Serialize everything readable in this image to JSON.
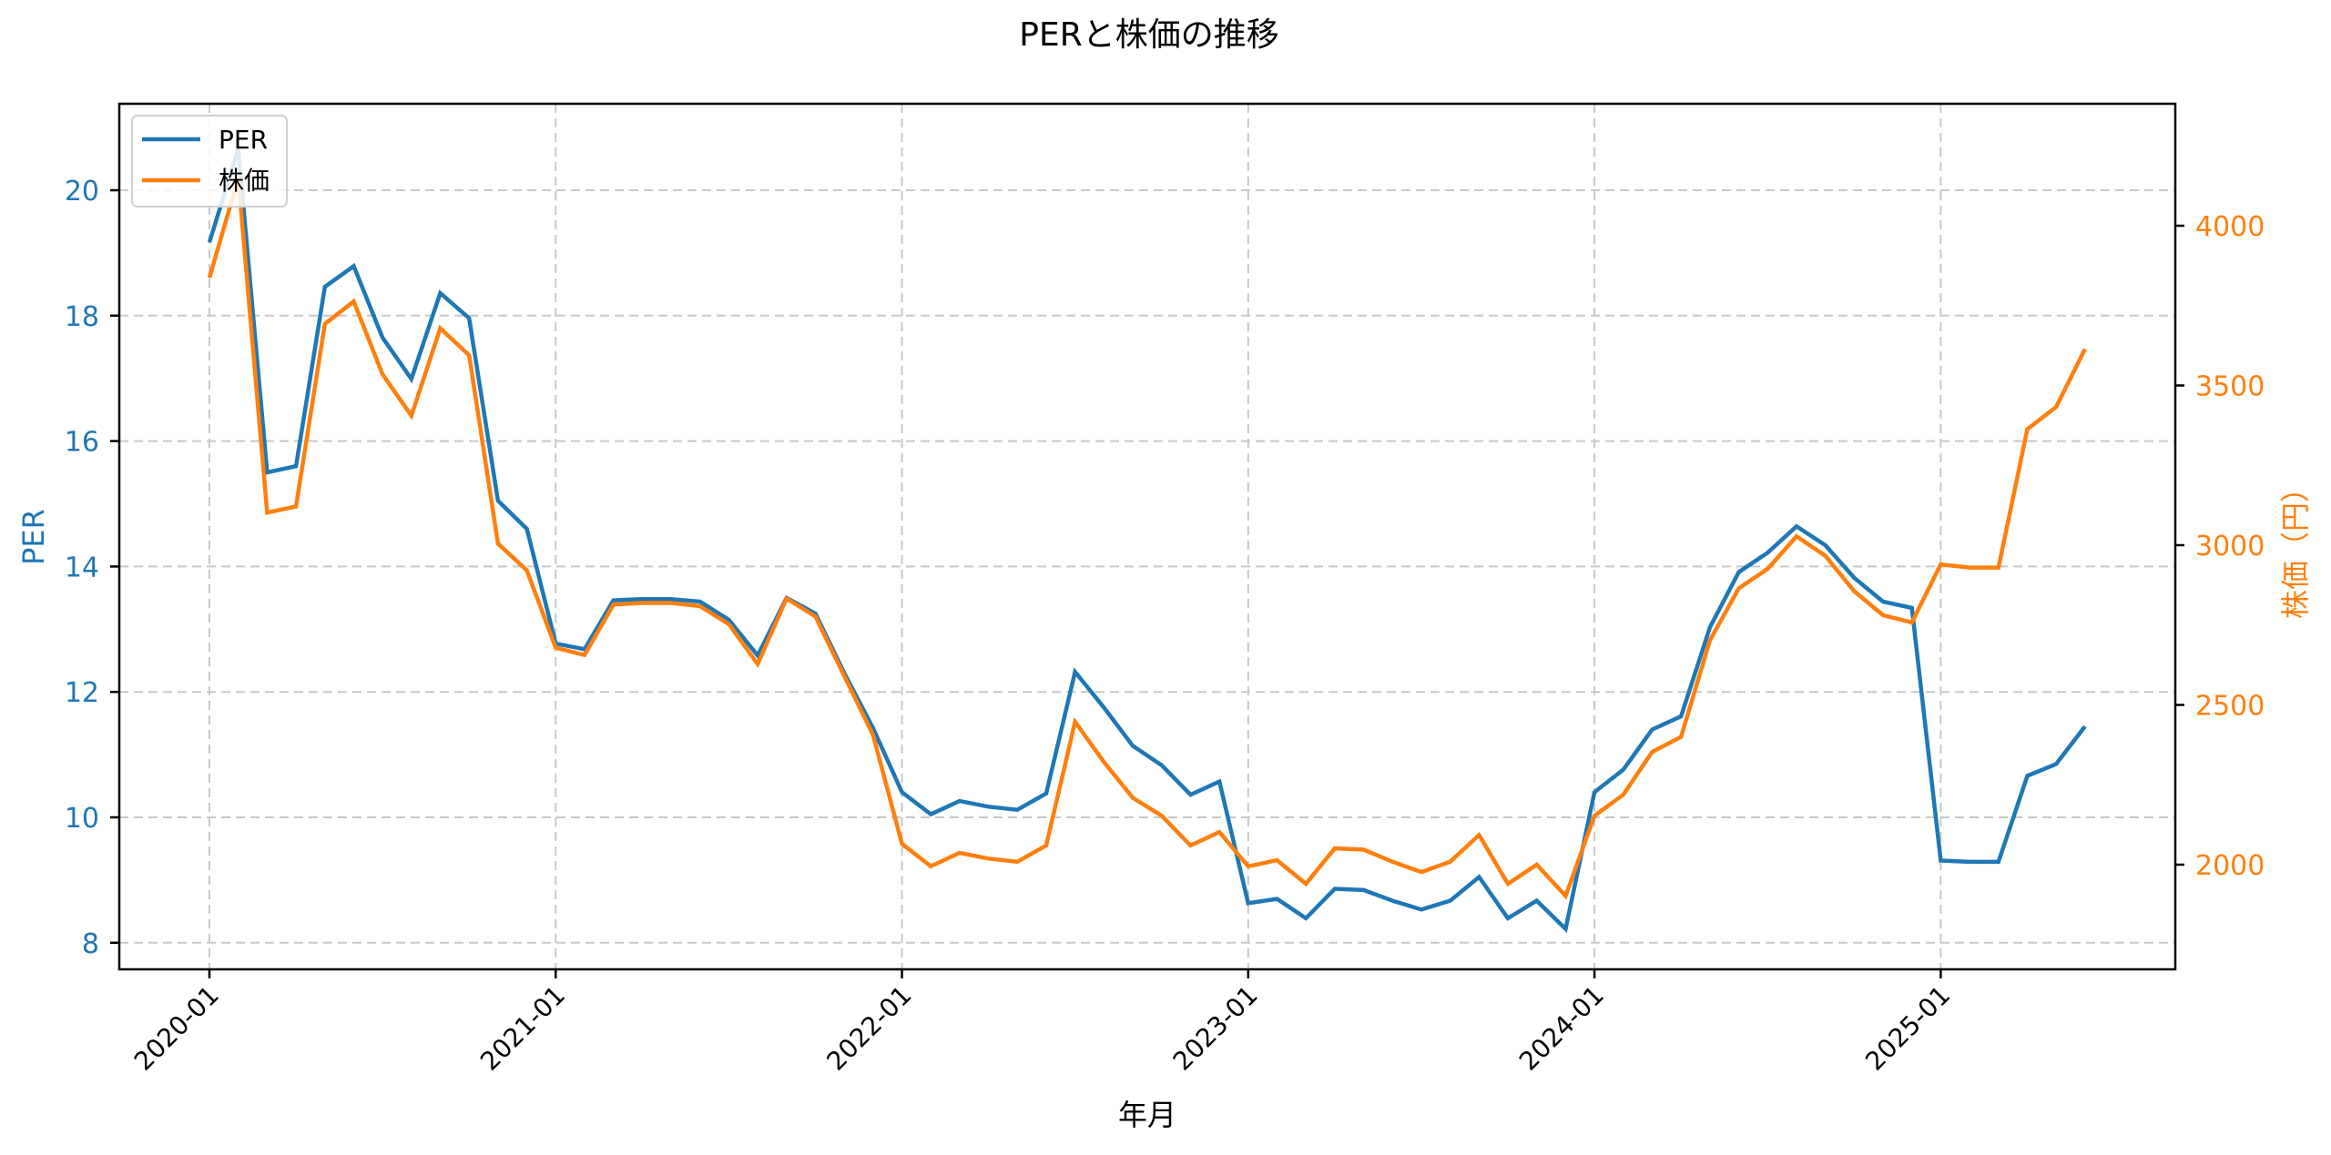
{
  "colors": {
    "per": "#1f77b4",
    "price": "#ff7f0e",
    "grid": "#c8c8c8",
    "axis": "#000000"
  },
  "chart_data": {
    "type": "line",
    "title": "PERと株価の推移",
    "xlabel": "年月",
    "ylabel": "PER",
    "ylabel_right": "株価（円）",
    "x_tick_labels": [
      "2020-01",
      "2021-01",
      "2022-01",
      "2023-01",
      "2024-01",
      "2025-01"
    ],
    "y_ticks_left": [
      8,
      10,
      12,
      14,
      16,
      18,
      20
    ],
    "y_ticks_right": [
      2000,
      2500,
      3000,
      3500,
      4000
    ],
    "ylim_left": [
      7.6,
      21.4
    ],
    "ylim_right": [
      1660,
      4380
    ],
    "grid": true,
    "grid_style": "dashed",
    "legend_position": "upper left",
    "legend": [
      "PER",
      "株価"
    ],
    "x": [
      "2020-01",
      "2020-02",
      "2020-03",
      "2020-04",
      "2020-05",
      "2020-06",
      "2020-07",
      "2020-08",
      "2020-09",
      "2020-10",
      "2020-11",
      "2020-12",
      "2021-01",
      "2021-02",
      "2021-03",
      "2021-04",
      "2021-05",
      "2021-06",
      "2021-07",
      "2021-08",
      "2021-09",
      "2021-10",
      "2021-11",
      "2021-12",
      "2022-01",
      "2022-02",
      "2022-03",
      "2022-04",
      "2022-05",
      "2022-06",
      "2022-07",
      "2022-08",
      "2022-09",
      "2022-10",
      "2022-11",
      "2022-12",
      "2023-01",
      "2023-02",
      "2023-03",
      "2023-04",
      "2023-05",
      "2023-06",
      "2023-07",
      "2023-08",
      "2023-09",
      "2023-10",
      "2023-11",
      "2023-12",
      "2024-01",
      "2024-02",
      "2024-03",
      "2024-04",
      "2024-05",
      "2024-06",
      "2024-07",
      "2024-08",
      "2024-09",
      "2024-10",
      "2024-11",
      "2024-12",
      "2025-01",
      "2025-02",
      "2025-03",
      "2025-04",
      "2025-05",
      "2025-06"
    ],
    "series": [
      {
        "name": "PER",
        "axis": "left",
        "color": "#1f77b4",
        "values": [
          19.17,
          20.66,
          15.5,
          15.6,
          18.46,
          18.79,
          17.65,
          16.99,
          18.36,
          17.96,
          15.05,
          14.6,
          12.77,
          12.68,
          13.46,
          13.48,
          13.48,
          13.44,
          13.15,
          12.58,
          13.5,
          13.25,
          12.3,
          11.42,
          10.4,
          10.05,
          10.26,
          10.17,
          10.12,
          10.38,
          12.32,
          11.75,
          11.14,
          10.83,
          10.36,
          10.57,
          8.63,
          8.7,
          8.39,
          8.86,
          8.84,
          8.67,
          8.53,
          8.67,
          9.05,
          8.39,
          8.67,
          8.22,
          10.4,
          10.76,
          11.4,
          11.61,
          13.03,
          13.91,
          14.22,
          14.64,
          14.34,
          13.82,
          13.44,
          13.34,
          9.31,
          9.29,
          9.29,
          10.66,
          10.85,
          11.45
        ]
      },
      {
        "name": "株価",
        "axis": "right",
        "color": "#ff7f0e",
        "values": [
          3837,
          4149,
          3102,
          3121,
          3693,
          3763,
          3535,
          3405,
          3679,
          3595,
          3005,
          2921,
          2679,
          2656,
          2814,
          2819,
          2819,
          2809,
          2753,
          2628,
          2833,
          2777,
          2591,
          2405,
          2065,
          1995,
          2037,
          2019,
          2009,
          2060,
          2447,
          2321,
          2209,
          2153,
          2060,
          2102,
          1995,
          2014,
          1940,
          2051,
          2047,
          2009,
          1977,
          2009,
          2093,
          1940,
          2000,
          1902,
          2153,
          2219,
          2353,
          2400,
          2702,
          2865,
          2926,
          3028,
          2967,
          2856,
          2781,
          2758,
          2940,
          2930,
          2930,
          3363,
          3433,
          3614
        ]
      }
    ]
  }
}
